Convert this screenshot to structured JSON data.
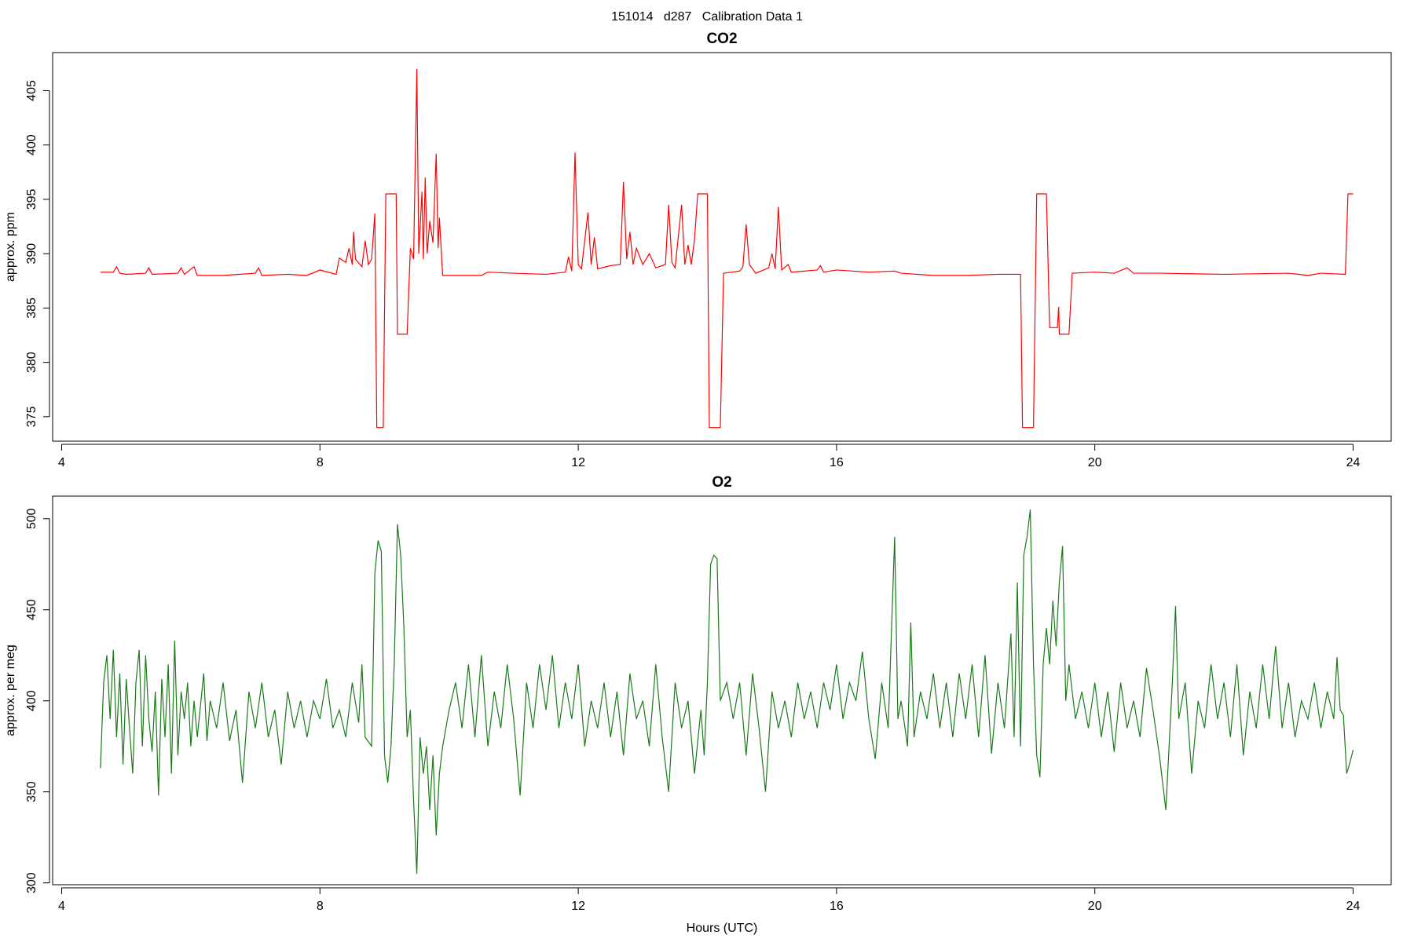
{
  "title": "151014   d287   Calibration Data 1",
  "chart_data": [
    {
      "type": "line",
      "title": "CO2",
      "ylabel": "approx. ppm",
      "color": "#ff0000",
      "xlim": [
        3.86,
        24.59
      ],
      "ylim": [
        372.75,
        408.5
      ],
      "xticks": [
        4,
        8,
        12,
        16,
        20,
        24
      ],
      "yticks": [
        375,
        380,
        385,
        390,
        395,
        400,
        405
      ],
      "x": [
        4.6,
        4.8,
        4.85,
        4.9,
        5.0,
        5.3,
        5.35,
        5.4,
        5.8,
        5.85,
        5.9,
        6.05,
        6.1,
        6.5,
        7.0,
        7.05,
        7.1,
        7.5,
        7.8,
        8.0,
        8.25,
        8.3,
        8.4,
        8.45,
        8.5,
        8.52,
        8.55,
        8.65,
        8.7,
        8.75,
        8.8,
        8.85,
        8.88,
        8.98,
        9.02,
        9.18,
        9.2,
        9.35,
        9.4,
        9.45,
        9.5,
        9.53,
        9.58,
        9.6,
        9.63,
        9.66,
        9.7,
        9.75,
        9.8,
        9.83,
        9.85,
        9.9,
        10.5,
        10.6,
        11.0,
        11.5,
        11.8,
        11.85,
        11.9,
        11.95,
        12.0,
        12.05,
        12.15,
        12.2,
        12.25,
        12.3,
        12.5,
        12.65,
        12.7,
        12.75,
        12.8,
        12.85,
        12.9,
        13.0,
        13.1,
        13.2,
        13.35,
        13.4,
        13.45,
        13.5,
        13.6,
        13.65,
        13.7,
        13.75,
        13.8,
        13.85,
        14.0,
        14.03,
        14.2,
        14.25,
        14.5,
        14.55,
        14.6,
        14.65,
        14.75,
        14.95,
        15.0,
        15.05,
        15.1,
        15.15,
        15.25,
        15.3,
        15.7,
        15.75,
        15.8,
        16.0,
        16.5,
        16.9,
        17.0,
        17.5,
        18.0,
        18.5,
        18.85,
        18.88,
        19.05,
        19.1,
        19.25,
        19.3,
        19.42,
        19.44,
        19.45,
        19.6,
        19.65,
        20.0,
        20.3,
        20.5,
        20.6,
        21.0,
        22.0,
        23.0,
        23.3,
        23.5,
        23.88,
        23.92,
        24.0
      ],
      "values": [
        388.3,
        388.3,
        388.8,
        388.2,
        388.1,
        388.2,
        388.7,
        388.1,
        388.2,
        388.7,
        388.1,
        388.8,
        388.0,
        388.0,
        388.2,
        388.7,
        388.0,
        388.1,
        388.0,
        388.5,
        388.1,
        389.6,
        389.2,
        390.5,
        389.0,
        392.0,
        389.5,
        388.8,
        391.2,
        389.0,
        389.5,
        393.7,
        374,
        374,
        395.5,
        395.5,
        382.6,
        382.6,
        390.5,
        389.5,
        407,
        390,
        395.7,
        389.5,
        397,
        390,
        393,
        391,
        399.2,
        390.5,
        393.3,
        388.0,
        388.0,
        388.3,
        388.2,
        388.1,
        388.3,
        389.7,
        388.4,
        399.3,
        389.0,
        388.6,
        393.8,
        389,
        391.5,
        388.6,
        388.9,
        389.0,
        396.6,
        389.5,
        392,
        389,
        390.5,
        389.0,
        390,
        388.7,
        389.0,
        394.5,
        389.2,
        388.7,
        394.5,
        389,
        390.8,
        389.0,
        391.3,
        395.5,
        395.5,
        374,
        374,
        388.2,
        388.4,
        388.8,
        392.7,
        389,
        388.2,
        388.7,
        390,
        388.6,
        394.3,
        388.5,
        389,
        388.3,
        388.5,
        388.9,
        388.3,
        388.5,
        388.3,
        388.4,
        388.2,
        388.0,
        388.0,
        388.1,
        388.1,
        374,
        374,
        395.5,
        395.5,
        383.2,
        383.2,
        385.1,
        382.6,
        382.6,
        388.2,
        388.3,
        388.2,
        388.7,
        388.2,
        388.2,
        388.1,
        388.2,
        388.0,
        388.2,
        388.1,
        395.5,
        395.5
      ]
    },
    {
      "type": "line",
      "title": "O2",
      "ylabel": "approx. per meg",
      "xlabel": "Hours (UTC)",
      "color": "#1a7a1a",
      "xlim": [
        3.86,
        24.59
      ],
      "ylim": [
        299,
        512.4
      ],
      "xticks": [
        4,
        8,
        12,
        16,
        20,
        24
      ],
      "yticks": [
        300,
        350,
        400,
        450,
        500
      ],
      "x": [
        4.6,
        4.65,
        4.7,
        4.75,
        4.8,
        4.85,
        4.9,
        4.95,
        5.0,
        5.05,
        5.1,
        5.15,
        5.2,
        5.25,
        5.3,
        5.35,
        5.4,
        5.45,
        5.5,
        5.55,
        5.6,
        5.65,
        5.7,
        5.75,
        5.8,
        5.85,
        5.9,
        5.95,
        6.0,
        6.05,
        6.1,
        6.2,
        6.25,
        6.3,
        6.4,
        6.5,
        6.6,
        6.7,
        6.8,
        6.9,
        7.0,
        7.1,
        7.2,
        7.3,
        7.4,
        7.5,
        7.6,
        7.7,
        7.8,
        7.9,
        8.0,
        8.1,
        8.2,
        8.3,
        8.4,
        8.5,
        8.6,
        8.65,
        8.7,
        8.8,
        8.85,
        8.9,
        8.95,
        9.0,
        9.05,
        9.1,
        9.15,
        9.2,
        9.25,
        9.3,
        9.35,
        9.4,
        9.45,
        9.5,
        9.55,
        9.6,
        9.65,
        9.7,
        9.75,
        9.8,
        9.85,
        9.9,
        10.0,
        10.1,
        10.2,
        10.3,
        10.4,
        10.5,
        10.6,
        10.7,
        10.8,
        10.9,
        11.0,
        11.1,
        11.2,
        11.3,
        11.4,
        11.5,
        11.6,
        11.7,
        11.8,
        11.9,
        12.0,
        12.1,
        12.2,
        12.3,
        12.4,
        12.5,
        12.6,
        12.7,
        12.8,
        12.9,
        13.0,
        13.1,
        13.2,
        13.3,
        13.4,
        13.5,
        13.6,
        13.7,
        13.8,
        13.9,
        13.95,
        14.0,
        14.05,
        14.1,
        14.15,
        14.2,
        14.3,
        14.4,
        14.5,
        14.6,
        14.7,
        14.8,
        14.9,
        15.0,
        15.1,
        15.2,
        15.3,
        15.4,
        15.5,
        15.6,
        15.7,
        15.8,
        15.9,
        16.0,
        16.1,
        16.2,
        16.3,
        16.4,
        16.5,
        16.6,
        16.7,
        16.8,
        16.9,
        16.95,
        17.0,
        17.1,
        17.15,
        17.2,
        17.3,
        17.4,
        17.5,
        17.6,
        17.7,
        17.8,
        17.9,
        18.0,
        18.1,
        18.2,
        18.3,
        18.4,
        18.5,
        18.6,
        18.7,
        18.75,
        18.8,
        18.85,
        18.9,
        18.95,
        19.0,
        19.05,
        19.1,
        19.15,
        19.2,
        19.25,
        19.3,
        19.35,
        19.4,
        19.45,
        19.5,
        19.55,
        19.6,
        19.7,
        19.8,
        19.9,
        20.0,
        20.1,
        20.2,
        20.3,
        20.4,
        20.5,
        20.6,
        20.7,
        20.8,
        20.9,
        21.0,
        21.1,
        21.2,
        21.25,
        21.3,
        21.4,
        21.5,
        21.6,
        21.7,
        21.8,
        21.9,
        22.0,
        22.1,
        22.2,
        22.3,
        22.4,
        22.5,
        22.6,
        22.7,
        22.8,
        22.9,
        23.0,
        23.1,
        23.2,
        23.3,
        23.4,
        23.5,
        23.6,
        23.7,
        23.75,
        23.8,
        23.85,
        23.9,
        23.95,
        24.0
      ],
      "values": [
        363,
        410,
        425,
        390,
        428,
        380,
        415,
        365,
        412,
        385,
        360,
        410,
        428,
        375,
        425,
        390,
        372,
        405,
        348,
        412,
        380,
        420,
        360,
        433,
        370,
        405,
        390,
        410,
        375,
        400,
        380,
        415,
        378,
        400,
        385,
        410,
        378,
        395,
        355,
        405,
        385,
        410,
        380,
        395,
        365,
        405,
        385,
        400,
        380,
        400,
        390,
        412,
        385,
        395,
        380,
        410,
        388,
        420,
        380,
        375,
        470,
        488,
        482,
        370,
        355,
        375,
        420,
        497,
        480,
        440,
        380,
        395,
        345,
        305,
        380,
        360,
        375,
        340,
        370,
        326,
        360,
        375,
        395,
        410,
        385,
        420,
        380,
        425,
        375,
        405,
        385,
        420,
        390,
        348,
        410,
        385,
        420,
        395,
        425,
        385,
        410,
        390,
        420,
        375,
        400,
        385,
        410,
        380,
        405,
        370,
        415,
        390,
        400,
        375,
        420,
        380,
        350,
        410,
        385,
        400,
        360,
        395,
        370,
        410,
        475,
        480,
        478,
        400,
        410,
        390,
        410,
        370,
        415,
        385,
        350,
        405,
        385,
        400,
        380,
        410,
        390,
        405,
        385,
        410,
        395,
        420,
        390,
        410,
        400,
        427,
        390,
        368,
        410,
        385,
        490,
        390,
        400,
        375,
        443,
        380,
        405,
        390,
        415,
        385,
        410,
        380,
        415,
        390,
        420,
        380,
        425,
        371,
        410,
        385,
        437,
        380,
        465,
        375,
        480,
        490,
        505,
        420,
        370,
        358,
        420,
        440,
        420,
        455,
        430,
        465,
        485,
        400,
        420,
        390,
        405,
        385,
        410,
        380,
        405,
        372,
        410,
        385,
        400,
        380,
        418,
        395,
        370,
        340,
        410,
        452,
        390,
        410,
        360,
        400,
        385,
        420,
        390,
        410,
        380,
        420,
        370,
        405,
        385,
        420,
        390,
        430,
        385,
        410,
        380,
        400,
        390,
        410,
        385,
        405,
        390,
        424,
        395,
        392,
        360,
        366,
        373
      ]
    }
  ]
}
